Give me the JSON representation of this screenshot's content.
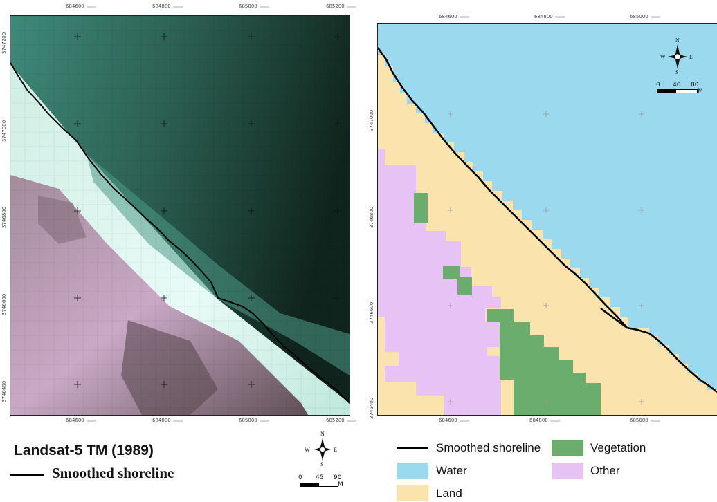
{
  "left_map": {
    "top_ticks": [
      "684600",
      "684800",
      "685000",
      "685200"
    ],
    "bottom_ticks": [
      "684600",
      "684800",
      "685000",
      "685200"
    ],
    "left_ticks": [
      "3747200",
      "3747000",
      "3746800",
      "3746600",
      "3746400"
    ],
    "title": "Landsat-5 TM (1989)",
    "legend_line_label": "Smoothed shoreline",
    "scale": {
      "labels": [
        "0",
        "45",
        "90"
      ],
      "unit": "M"
    },
    "compass": {
      "n": "N",
      "s": "S",
      "e": "E",
      "w": "W"
    }
  },
  "right_map": {
    "top_ticks": [
      "684600",
      "684800",
      "685000"
    ],
    "bottom_ticks": [
      "684600",
      "684800",
      "685000"
    ],
    "left_ticks": [
      "3747000",
      "3746800",
      "3746600",
      "3746400"
    ],
    "scale": {
      "labels": [
        "0",
        "40",
        "80"
      ],
      "unit": "M"
    },
    "compass": {
      "n": "N",
      "s": "S",
      "e": "E",
      "w": "W"
    },
    "colors": {
      "water": "#9ad9ee",
      "land": "#fae3ad",
      "vegetation": "#6aad6c",
      "other": "#e6c2f5"
    }
  },
  "legend": {
    "shoreline": "Smoothed shoreline",
    "vegetation": "Vegetation",
    "water": "Water",
    "other": "Other",
    "land": "Land"
  }
}
